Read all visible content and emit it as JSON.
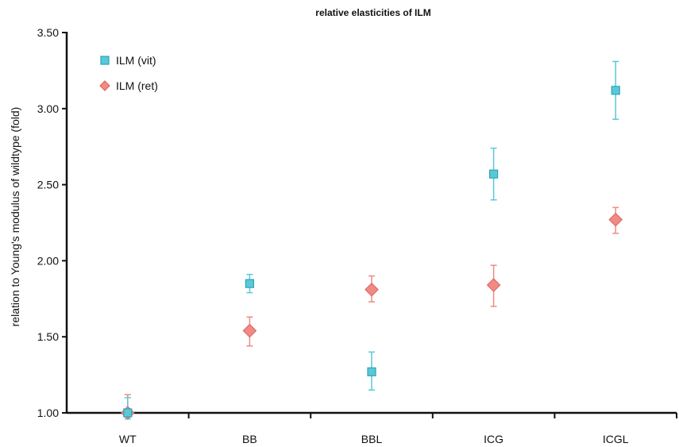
{
  "chart_data": {
    "type": "scatter",
    "title": "relative elasticities of ILM",
    "xlabel": "",
    "ylabel": "relation to Young's modulus of  wildtype (fold)",
    "categories": [
      "WT",
      "BB",
      "BBL",
      "ICG",
      "ICGL"
    ],
    "ylim": [
      1.0,
      3.5
    ],
    "yticks": [
      "1.00",
      "1.50",
      "2.00",
      "2.50",
      "3.00",
      "3.50"
    ],
    "grid": false,
    "legend_position": "top-left",
    "series": [
      {
        "name": "ILM (vit)",
        "marker": "square",
        "color": "#5bc8d8",
        "stroke": "#2aa5b8",
        "values": [
          1.0,
          1.85,
          1.27,
          2.57,
          3.12
        ],
        "err_low": [
          0.96,
          1.79,
          1.15,
          2.4,
          2.93
        ],
        "err_high": [
          1.1,
          1.91,
          1.4,
          2.74,
          3.31
        ]
      },
      {
        "name": "ILM (ret)",
        "marker": "diamond",
        "color": "#f08a85",
        "stroke": "#e06a65",
        "values": [
          1.0,
          1.54,
          1.81,
          1.84,
          2.27
        ],
        "err_low": [
          0.98,
          1.44,
          1.73,
          1.7,
          2.18
        ],
        "err_high": [
          1.12,
          1.63,
          1.9,
          1.97,
          2.35
        ]
      }
    ]
  }
}
